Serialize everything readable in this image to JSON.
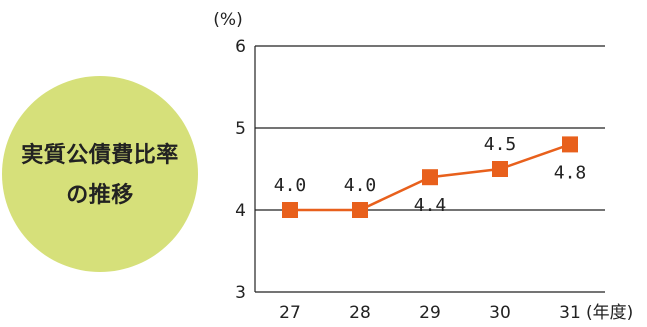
{
  "badge": {
    "line1": "実質公債費比率",
    "line2": "の推移",
    "color": "#d6e07a"
  },
  "chart_data": {
    "type": "line",
    "title": "実質公債費比率の推移",
    "ylabel": "(%)",
    "xlabel": "(年度)",
    "categories": [
      "27",
      "28",
      "29",
      "30",
      "31"
    ],
    "series": [
      {
        "name": "",
        "values": [
          4.0,
          4.0,
          4.4,
          4.5,
          4.8
        ],
        "labels": [
          "4.0",
          "4.0",
          "4.4",
          "4.5",
          "4.8"
        ],
        "color": "#e8601c"
      }
    ],
    "ylim": [
      3,
      6
    ],
    "yticks": [
      "3",
      "4",
      "5",
      "6"
    ],
    "grid": true,
    "legend": "none"
  }
}
